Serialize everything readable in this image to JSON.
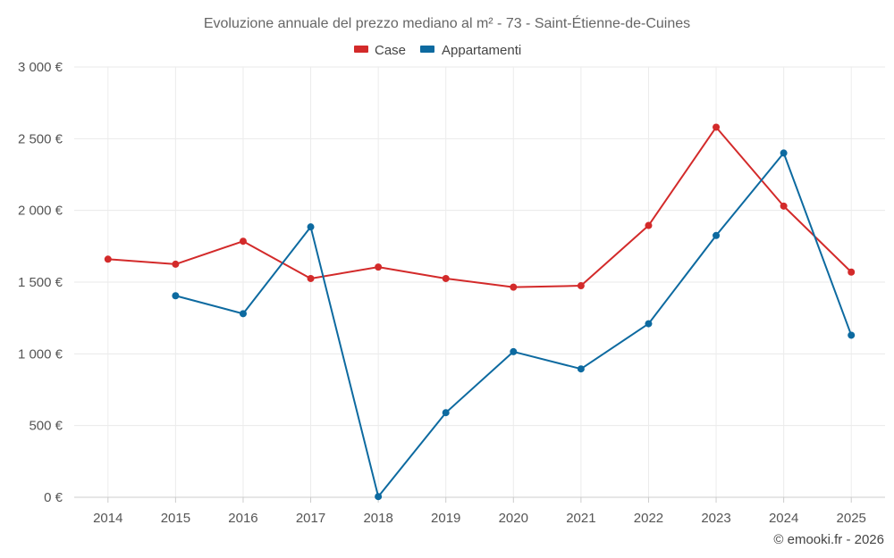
{
  "chart_data": {
    "type": "line",
    "title": "Evoluzione annuale del prezzo mediano al m² - 73 - Saint-Étienne-de-Cuines",
    "categories": [
      "2014",
      "2015",
      "2016",
      "2017",
      "2018",
      "2019",
      "2020",
      "2021",
      "2022",
      "2023",
      "2024",
      "2025"
    ],
    "ylim": [
      0,
      3000
    ],
    "yticks": [
      0,
      500,
      1000,
      1500,
      2000,
      2500,
      3000
    ],
    "ytick_labels": [
      "0 €",
      "500 €",
      "1 000 €",
      "1 500 €",
      "2 000 €",
      "2 500 €",
      "3 000 €"
    ],
    "grid": true,
    "legend_position": "top-center",
    "series": [
      {
        "name": "Case",
        "color": "#d32a2a",
        "values": [
          1660,
          1625,
          1785,
          1525,
          1605,
          1525,
          1465,
          1475,
          1895,
          2580,
          2030,
          1570
        ]
      },
      {
        "name": "Appartamenti",
        "color": "#0d6aa0",
        "values": [
          null,
          1405,
          1280,
          1885,
          5,
          590,
          1015,
          895,
          1210,
          1825,
          2400,
          1130
        ]
      }
    ]
  },
  "credit": "© emooki.fr - 2026"
}
